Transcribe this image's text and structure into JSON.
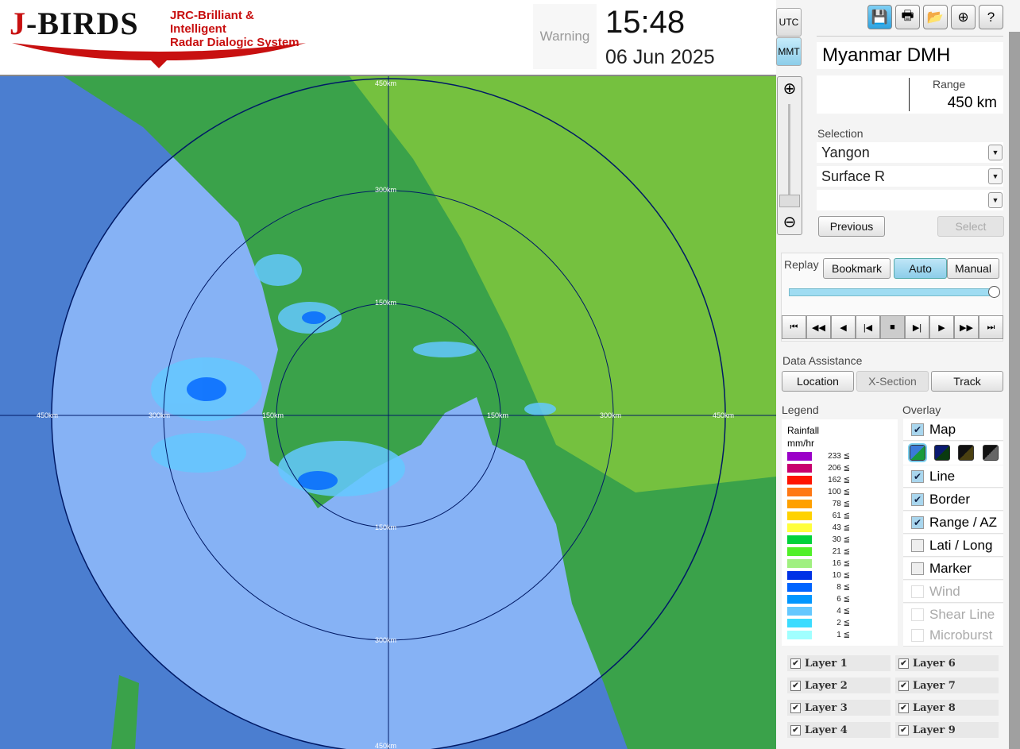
{
  "header": {
    "logo_text": "J-BIRDS",
    "logo_subtitle_1": "JRC-Brilliant & Intelligent",
    "logo_subtitle_2": "Radar Dialogic System",
    "warning": "Warning",
    "time": "15:48",
    "date": "06 Jun 2025",
    "tz_utc": "UTC",
    "tz_mmt": "MMT"
  },
  "toolbar": {
    "icons": [
      "save-icon",
      "print-icon",
      "open-folder-icon",
      "add-image-icon",
      "help-icon"
    ]
  },
  "station": {
    "name": "Myanmar DMH",
    "range_label": "Range",
    "range_value": "450 km"
  },
  "selection": {
    "label": "Selection",
    "site": "Yangon",
    "product": "Surface R",
    "third": "",
    "previous": "Previous",
    "select": "Select"
  },
  "replay": {
    "label": "Replay",
    "bookmark": "Bookmark",
    "auto": "Auto",
    "manual": "Manual",
    "progress": 1.0
  },
  "data_assistance": {
    "label": "Data Assistance",
    "location": "Location",
    "xsection": "X-Section",
    "track": "Track"
  },
  "legend": {
    "label": "Legend",
    "title": "Rainfall",
    "unit": "mm/hr",
    "items": [
      {
        "v": "233 ≦",
        "c": "#9b00c8"
      },
      {
        "v": "206 ≦",
        "c": "#c8006e"
      },
      {
        "v": "162 ≦",
        "c": "#ff1400"
      },
      {
        "v": "100 ≦",
        "c": "#ff7814"
      },
      {
        "v": "78 ≦",
        "c": "#ffa000"
      },
      {
        "v": "61 ≦",
        "c": "#ffd200"
      },
      {
        "v": "43 ≦",
        "c": "#ffff3c"
      },
      {
        "v": "30 ≦",
        "c": "#00d23c"
      },
      {
        "v": "21 ≦",
        "c": "#50f028"
      },
      {
        "v": "16 ≦",
        "c": "#a0f080"
      },
      {
        "v": "10 ≦",
        "c": "#0032e6"
      },
      {
        "v": "8 ≦",
        "c": "#0064ff"
      },
      {
        "v": "6 ≦",
        "c": "#0096ff"
      },
      {
        "v": "4 ≦",
        "c": "#64c8ff"
      },
      {
        "v": "2 ≦",
        "c": "#3cdcff"
      },
      {
        "v": "1 ≦",
        "c": "#a0ffff"
      }
    ]
  },
  "overlay": {
    "label": "Overlay",
    "items": [
      {
        "label": "Map",
        "checked": true,
        "enabled": true
      },
      {
        "label": "Line",
        "checked": true,
        "enabled": true
      },
      {
        "label": "Border",
        "checked": true,
        "enabled": true
      },
      {
        "label": "Range / AZ",
        "checked": true,
        "enabled": true
      },
      {
        "label": "Lati / Long",
        "checked": false,
        "enabled": true
      },
      {
        "label": "Marker",
        "checked": false,
        "enabled": true
      },
      {
        "label": "Wind",
        "checked": false,
        "enabled": false
      },
      {
        "label": "Shear Line",
        "checked": false,
        "enabled": false
      },
      {
        "label": "Microburst",
        "checked": false,
        "enabled": false
      }
    ]
  },
  "layers": [
    "Layer 1",
    "Layer 2",
    "Layer 3",
    "Layer 4",
    "Layer 6",
    "Layer 7",
    "Layer 8",
    "Layer 9"
  ],
  "map": {
    "range_labels": {
      "n450": "450km",
      "n300": "300km",
      "n150": "150km",
      "s150": "150km",
      "s300": "300km",
      "s450": "450km",
      "w450": "450km",
      "w300": "300km",
      "w150": "150km",
      "e150": "150km",
      "e300": "300km",
      "e450": "450km"
    }
  }
}
